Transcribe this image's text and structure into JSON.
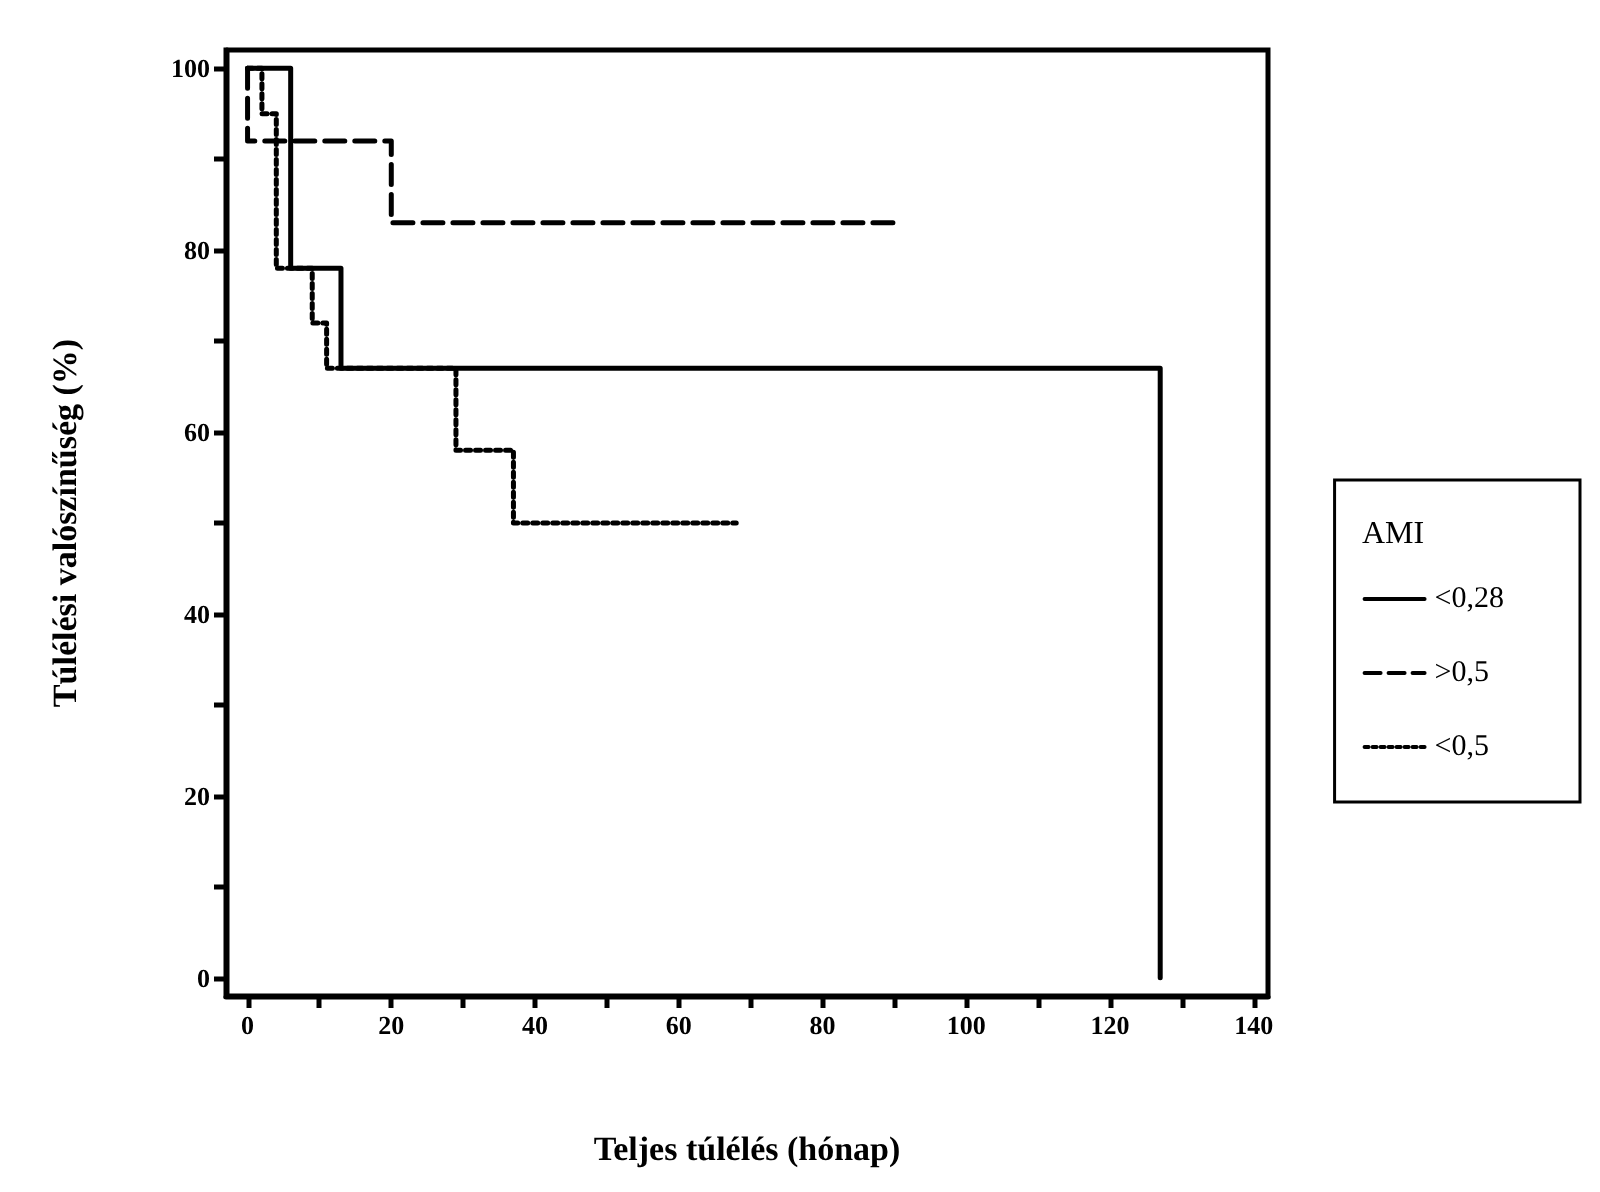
{
  "chart_data": {
    "type": "step",
    "xlabel": "Teljes túlélés (hónap)",
    "ylabel": "Túlélési valószínűség (%)",
    "legend_title": "AMI",
    "legend": "right",
    "grid": false,
    "marker": "none",
    "xlim": [
      -3,
      142
    ],
    "ylim": [
      -2,
      102
    ],
    "xticks": [
      0,
      {
        "value": 10,
        "label": null
      },
      20,
      {
        "value": 30,
        "label": null
      },
      40,
      {
        "value": 50,
        "label": null
      },
      60,
      {
        "value": 70,
        "label": null
      },
      80,
      {
        "value": 90,
        "label": null
      },
      100,
      {
        "value": 110,
        "label": null
      },
      120,
      {
        "value": 130,
        "label": null
      },
      140
    ],
    "yticks": [
      0,
      {
        "value": 10,
        "label": null
      },
      20,
      {
        "value": 30,
        "label": null
      },
      40,
      {
        "value": 50,
        "label": null
      },
      60,
      {
        "value": 70,
        "label": null
      },
      80,
      {
        "value": 90,
        "label": null
      },
      100
    ],
    "series": [
      {
        "name": "<0,28",
        "color": "#000000",
        "line_style": "solid",
        "x": [
          0,
          6,
          13,
          127
        ],
        "values": [
          100,
          78,
          67,
          0
        ]
      },
      {
        "name": ">0,5",
        "color": "#000000",
        "line_style": "dashed",
        "x": [
          0,
          0,
          20,
          90
        ],
        "values": [
          100,
          92,
          83,
          83
        ]
      },
      {
        "name": "<0,5",
        "color": "#000000",
        "line_style": "dotted",
        "x": [
          0,
          2,
          4,
          9,
          11,
          29,
          37,
          68
        ],
        "values": [
          100,
          95,
          78,
          72,
          67,
          58,
          50,
          50
        ]
      }
    ]
  }
}
